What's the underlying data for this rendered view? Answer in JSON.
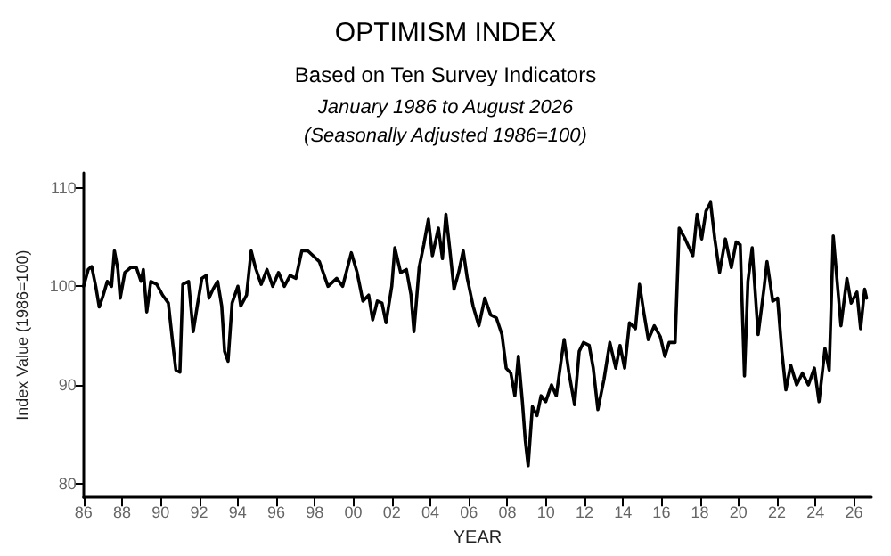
{
  "chart_data": {
    "type": "line",
    "title": "OPTIMISM INDEX",
    "subtitle": "Based on Ten Survey Indicators",
    "annotations": [
      "January 1986 to August 2026",
      "(Seasonally Adjusted 1986=100)"
    ],
    "xlabel": "YEAR",
    "ylabel": "Index Value (1986=100)",
    "xlim": [
      1986,
      2026.9
    ],
    "xticks": [
      {
        "value": 1986,
        "label": "86"
      },
      {
        "value": 1988,
        "label": "88"
      },
      {
        "value": 1990,
        "label": "90"
      },
      {
        "value": 1992,
        "label": "92"
      },
      {
        "value": 1994,
        "label": "94"
      },
      {
        "value": 1996,
        "label": "96"
      },
      {
        "value": 1998,
        "label": "98"
      },
      {
        "value": 2000,
        "label": "00"
      },
      {
        "value": 2002,
        "label": "02"
      },
      {
        "value": 2004,
        "label": "04"
      },
      {
        "value": 2006,
        "label": "06"
      },
      {
        "value": 2008,
        "label": "08"
      },
      {
        "value": 2010,
        "label": "10"
      },
      {
        "value": 2012,
        "label": "12"
      },
      {
        "value": 2014,
        "label": "14"
      },
      {
        "value": 2016,
        "label": "16"
      },
      {
        "value": 2018,
        "label": "18"
      },
      {
        "value": 2020,
        "label": "20"
      },
      {
        "value": 2022,
        "label": "22"
      },
      {
        "value": 2024,
        "label": "24"
      },
      {
        "value": 2026,
        "label": "26"
      }
    ],
    "ylim": [
      78.6,
      111.5
    ],
    "yticks": [
      80,
      90,
      100,
      110
    ],
    "grid": false,
    "marker": "none",
    "line_style": "solid",
    "series": [
      {
        "color": "#000000",
        "x": [
          1986.0,
          1986.24,
          1986.42,
          1986.63,
          1986.81,
          1987.02,
          1987.23,
          1987.45,
          1987.6,
          1987.78,
          1987.9,
          1988.14,
          1988.44,
          1988.74,
          1988.98,
          1989.1,
          1989.28,
          1989.49,
          1989.8,
          1990.1,
          1990.4,
          1990.64,
          1990.79,
          1991.0,
          1991.15,
          1991.45,
          1991.69,
          1991.9,
          1992.14,
          1992.36,
          1992.51,
          1992.72,
          1992.96,
          1993.17,
          1993.32,
          1993.5,
          1993.71,
          1994.01,
          1994.16,
          1994.46,
          1994.7,
          1994.92,
          1995.22,
          1995.52,
          1995.82,
          1996.12,
          1996.42,
          1996.72,
          1997.02,
          1997.33,
          1997.64,
          1998.24,
          1998.69,
          1999.14,
          1999.45,
          1999.9,
          2000.2,
          2000.5,
          2000.8,
          2001.01,
          2001.25,
          2001.49,
          2001.7,
          2002.0,
          2002.16,
          2002.46,
          2002.76,
          2003.0,
          2003.15,
          2003.42,
          2003.66,
          2003.9,
          2004.11,
          2004.42,
          2004.63,
          2004.81,
          2005.02,
          2005.23,
          2005.47,
          2005.71,
          2005.92,
          2006.22,
          2006.52,
          2006.83,
          2007.13,
          2007.43,
          2007.72,
          2007.94,
          2008.18,
          2008.39,
          2008.57,
          2008.78,
          2008.93,
          2009.08,
          2009.3,
          2009.54,
          2009.75,
          2009.99,
          2010.29,
          2010.54,
          2010.8,
          2010.95,
          2011.2,
          2011.49,
          2011.73,
          2011.95,
          2012.25,
          2012.46,
          2012.7,
          2013.02,
          2013.32,
          2013.63,
          2013.85,
          2014.09,
          2014.34,
          2014.65,
          2014.86,
          2015.08,
          2015.32,
          2015.63,
          2015.94,
          2016.18,
          2016.4,
          2016.71,
          2016.92,
          2017.23,
          2017.63,
          2017.85,
          2018.09,
          2018.31,
          2018.55,
          2018.77,
          2019.02,
          2019.32,
          2019.63,
          2019.88,
          2020.09,
          2020.31,
          2020.49,
          2020.71,
          2021.02,
          2021.32,
          2021.48,
          2021.78,
          2022.03,
          2022.25,
          2022.46,
          2022.71,
          2023.02,
          2023.32,
          2023.63,
          2023.94,
          2024.18,
          2024.49,
          2024.71,
          2024.92,
          2025.17,
          2025.32,
          2025.63,
          2025.85,
          2026.15,
          2026.34,
          2026.55,
          2026.65
        ],
        "values": [
          100.0,
          101.7,
          102.0,
          100.0,
          97.9,
          99.1,
          100.5,
          100.0,
          103.6,
          101.7,
          98.8,
          101.4,
          101.9,
          101.9,
          100.5,
          101.7,
          97.4,
          100.5,
          100.2,
          99.1,
          98.3,
          94.0,
          91.5,
          91.3,
          100.2,
          100.5,
          95.4,
          98.0,
          100.8,
          101.1,
          98.8,
          99.7,
          100.5,
          98.0,
          93.4,
          92.4,
          98.3,
          100.0,
          98.0,
          99.1,
          103.6,
          101.9,
          100.2,
          101.7,
          100.0,
          101.4,
          100.0,
          101.1,
          100.8,
          103.6,
          103.6,
          102.5,
          100.0,
          100.8,
          100.0,
          103.4,
          101.4,
          98.5,
          99.1,
          96.6,
          98.5,
          98.3,
          96.3,
          100.0,
          103.9,
          101.4,
          101.7,
          99.1,
          95.4,
          101.9,
          104.2,
          106.8,
          103.1,
          105.9,
          102.8,
          107.3,
          103.6,
          99.7,
          101.4,
          103.6,
          100.8,
          98.0,
          96.0,
          98.8,
          97.1,
          96.8,
          95.1,
          91.7,
          91.2,
          88.9,
          92.9,
          88.3,
          84.4,
          81.8,
          87.8,
          86.9,
          88.9,
          88.3,
          90.0,
          88.9,
          92.6,
          94.6,
          91.2,
          88.0,
          93.4,
          94.3,
          94.0,
          91.7,
          87.5,
          90.6,
          94.3,
          91.7,
          94.0,
          91.7,
          96.3,
          95.7,
          100.2,
          97.4,
          94.6,
          96.0,
          94.9,
          92.9,
          94.3,
          94.3,
          105.9,
          104.8,
          103.1,
          107.3,
          104.8,
          107.6,
          108.5,
          104.8,
          101.4,
          104.8,
          101.9,
          104.5,
          104.2,
          90.9,
          100.5,
          103.9,
          95.1,
          99.7,
          102.5,
          98.5,
          98.8,
          93.4,
          89.5,
          92.0,
          90.0,
          91.2,
          90.0,
          91.7,
          88.3,
          93.7,
          91.5,
          105.1,
          99.4,
          96.0,
          100.8,
          98.3,
          99.4,
          95.7,
          99.7,
          98.8
        ]
      }
    ]
  }
}
